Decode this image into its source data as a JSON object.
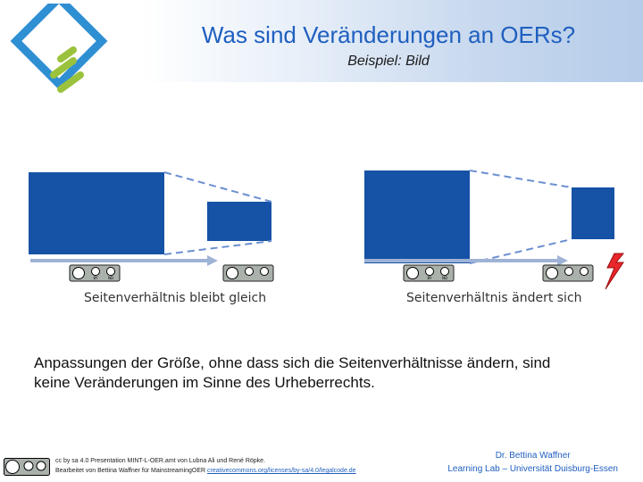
{
  "header": {
    "title": "Was sind Veränderungen an OERs?",
    "subtitle": "Beispiel: Bild"
  },
  "figure": {
    "left_badge_labels": [
      "BY",
      "ND"
    ],
    "right_badge_labels": [
      "BY",
      "ND"
    ],
    "left_caption": "Seitenverhältnis bleibt gleich",
    "right_caption": "Seitenverhältnis ändert sich",
    "colors": {
      "box": "#1652a6",
      "dash": "#6b8fd0",
      "bolt": "#e8262b"
    }
  },
  "body": {
    "line1": "Anpassungen der Größe, ohne dass sich die Seitenverhältnisse ändern, sind",
    "line2": "keine Veränderungen im Sinne des Urheberrechts."
  },
  "footer": {
    "license_line1": "cc by sa 4.0 Presentation MINT-L-OER.amt von Lubna Ali und René Röpke.",
    "license_line2_prefix": "Bearbeitet von Bettina Waffner für MainstreamingOER",
    "license_url": "creativecommons.org/licenses/by-sa/4.0/legalcode.de",
    "author": "Dr. Bettina Waffner",
    "institution": "Learning Lab – Universität Duisburg-Essen"
  }
}
